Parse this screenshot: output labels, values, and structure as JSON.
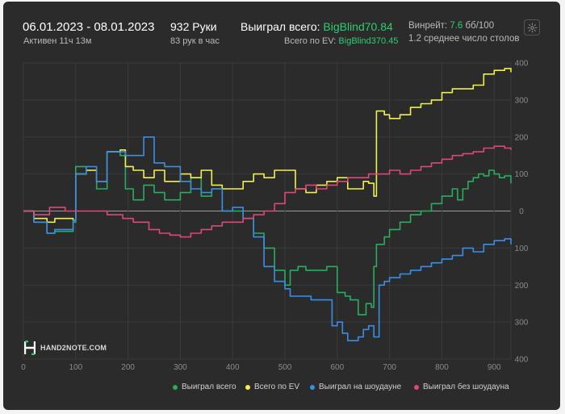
{
  "header": {
    "date_range": "06.01.2023 - 08.01.2023",
    "active": "Активен 11ч 13м",
    "hands": "932 Руки",
    "hands_per_hour": "83 рук в час",
    "won_total_label": "Выиграл всего:",
    "won_total_value": "BigBlind70.84",
    "ev_label": "Всего по EV:",
    "ev_value": "BigBlind370.45",
    "winrate_label": "Винрейт:",
    "winrate_value": "7.6",
    "winrate_unit": "бб/100",
    "avg_tables": "1.2 среднее число столов"
  },
  "icons": {
    "settings": "gear-icon",
    "logo": "hand2note-logo-icon"
  },
  "logo_text": "HAND2NOTE.COM",
  "colors": {
    "background": "#2b2b2b",
    "won_total": "#27ae60",
    "ev": "#f1f14a",
    "showdown": "#3a8ee6",
    "non_showdown": "#e0457b",
    "accent_green": "#2ecc71"
  },
  "chart_data": {
    "type": "line",
    "x_ticks": [
      "0",
      "100",
      "200",
      "300",
      "400",
      "500",
      "600",
      "700",
      "800",
      "900"
    ],
    "y_ticks": [
      "400",
      "300",
      "200",
      "100",
      "0",
      "100",
      "200",
      "300",
      "400"
    ],
    "xlim": [
      0,
      932
    ],
    "ylim": [
      -400,
      400
    ],
    "grid": true,
    "legend_position": "bottom-right",
    "series": [
      {
        "name": "Выиграл всего",
        "color": "#27ae60",
        "x": [
          0,
          20,
          45,
          60,
          95,
          100,
          120,
          140,
          160,
          185,
          195,
          210,
          230,
          250,
          270,
          300,
          320,
          340,
          360,
          380,
          400,
          420,
          440,
          460,
          480,
          500,
          510,
          525,
          540,
          560,
          580,
          600,
          615,
          625,
          640,
          655,
          665,
          670,
          675,
          690,
          700,
          720,
          740,
          760,
          780,
          800,
          820,
          830,
          840,
          850,
          860,
          870,
          880,
          890,
          900,
          910,
          920,
          932
        ],
        "y": [
          0,
          -30,
          -60,
          -55,
          -30,
          120,
          110,
          60,
          160,
          150,
          60,
          30,
          70,
          50,
          30,
          50,
          90,
          40,
          60,
          0,
          0,
          -20,
          -60,
          -100,
          -160,
          -200,
          -160,
          -150,
          -160,
          -160,
          -150,
          -220,
          -230,
          -240,
          -280,
          -250,
          -260,
          -150,
          -90,
          -70,
          -50,
          -30,
          -10,
          0,
          20,
          40,
          60,
          30,
          60,
          80,
          90,
          100,
          95,
          110,
          100,
          90,
          95,
          75
        ]
      },
      {
        "name": "Всего по EV",
        "color": "#f1f14a",
        "x": [
          0,
          20,
          45,
          60,
          95,
          100,
          120,
          140,
          160,
          185,
          195,
          210,
          230,
          250,
          270,
          300,
          320,
          340,
          360,
          380,
          400,
          420,
          440,
          460,
          480,
          500,
          520,
          540,
          560,
          580,
          600,
          620,
          640,
          650,
          660,
          670,
          675,
          690,
          700,
          720,
          740,
          760,
          780,
          800,
          820,
          840,
          860,
          880,
          900,
          920,
          932
        ],
        "y": [
          0,
          -20,
          -30,
          -20,
          -25,
          100,
          110,
          80,
          160,
          165,
          120,
          110,
          90,
          110,
          80,
          100,
          90,
          110,
          70,
          60,
          60,
          80,
          100,
          90,
          110,
          110,
          60,
          50,
          70,
          80,
          90,
          60,
          60,
          80,
          75,
          40,
          270,
          260,
          250,
          260,
          280,
          290,
          300,
          320,
          330,
          330,
          340,
          370,
          380,
          385,
          375
        ]
      },
      {
        "name": "Выиграл на шоудауне",
        "color": "#3a8ee6",
        "x": [
          0,
          20,
          45,
          60,
          95,
          100,
          120,
          140,
          160,
          185,
          195,
          210,
          230,
          250,
          270,
          300,
          320,
          340,
          360,
          380,
          400,
          420,
          440,
          460,
          480,
          500,
          510,
          530,
          550,
          570,
          590,
          600,
          610,
          620,
          640,
          650,
          660,
          670,
          680,
          690,
          700,
          720,
          740,
          760,
          780,
          800,
          820,
          840,
          860,
          880,
          900,
          920,
          932
        ],
        "y": [
          0,
          -30,
          -60,
          -50,
          -25,
          100,
          120,
          80,
          160,
          160,
          150,
          150,
          200,
          130,
          120,
          80,
          60,
          50,
          60,
          0,
          10,
          -20,
          -70,
          -150,
          -190,
          -210,
          -230,
          -230,
          -240,
          -240,
          -310,
          -300,
          -330,
          -350,
          -340,
          -320,
          -310,
          -340,
          -200,
          -190,
          -180,
          -170,
          -160,
          -150,
          -140,
          -130,
          -120,
          -100,
          -110,
          -90,
          -80,
          -75,
          -90
        ]
      },
      {
        "name": "Выиграл без шоудауна",
        "color": "#e0457b",
        "x": [
          0,
          20,
          50,
          80,
          100,
          130,
          160,
          190,
          210,
          240,
          260,
          280,
          300,
          320,
          340,
          360,
          380,
          400,
          420,
          440,
          460,
          480,
          500,
          520,
          540,
          560,
          580,
          600,
          620,
          640,
          660,
          680,
          700,
          720,
          740,
          760,
          780,
          800,
          820,
          840,
          860,
          880,
          900,
          920,
          932
        ],
        "y": [
          0,
          -10,
          10,
          0,
          0,
          0,
          -10,
          -20,
          -30,
          -50,
          -60,
          -65,
          -70,
          -60,
          -50,
          -40,
          -30,
          -30,
          -20,
          -10,
          0,
          20,
          50,
          60,
          70,
          60,
          70,
          80,
          90,
          90,
          100,
          100,
          110,
          100,
          110,
          120,
          130,
          140,
          150,
          155,
          160,
          170,
          175,
          170,
          165
        ]
      }
    ]
  },
  "legend": [
    {
      "label": "Выиграл всего",
      "color": "#27ae60"
    },
    {
      "label": "Всего по EV",
      "color": "#f1f14a"
    },
    {
      "label": "Выиграл на шоудауне",
      "color": "#3a8ee6"
    },
    {
      "label": "Выиграл без шоудауна",
      "color": "#e0457b"
    }
  ]
}
